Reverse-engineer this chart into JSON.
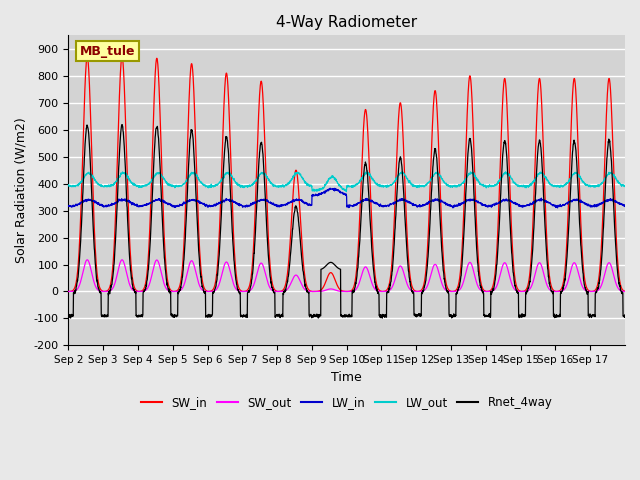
{
  "title": "4-Way Radiometer",
  "xlabel": "Time",
  "ylabel": "Solar Radiation (W/m2)",
  "annotation": "MB_tule",
  "ylim": [
    -200,
    950
  ],
  "yticks": [
    -200,
    -100,
    0,
    100,
    200,
    300,
    400,
    500,
    600,
    700,
    800,
    900
  ],
  "xtick_labels": [
    "Sep 2",
    "Sep 3",
    "Sep 4",
    "Sep 5",
    "Sep 6",
    "Sep 7",
    "Sep 8",
    "Sep 9",
    "Sep 10",
    "Sep 11",
    "Sep 12",
    "Sep 13",
    "Sep 14",
    "Sep 15",
    "Sep 16",
    "Sep 17"
  ],
  "colors": {
    "SW_in": "#ff0000",
    "SW_out": "#ff00ff",
    "LW_in": "#0000cc",
    "LW_out": "#00cccc",
    "Rnet_4way": "#000000"
  },
  "background_color": "#e8e8e8",
  "plot_bg_color": "#d3d3d3",
  "grid_color": "#ffffff",
  "n_days": 16,
  "LW_in_base": 315,
  "LW_out_base": 390,
  "Rnet_night": -90,
  "SW_in_peaks_per_day": [
    870,
    870,
    865,
    845,
    810,
    780,
    450,
    70,
    675,
    700,
    745,
    800,
    790,
    790,
    790,
    790
  ]
}
